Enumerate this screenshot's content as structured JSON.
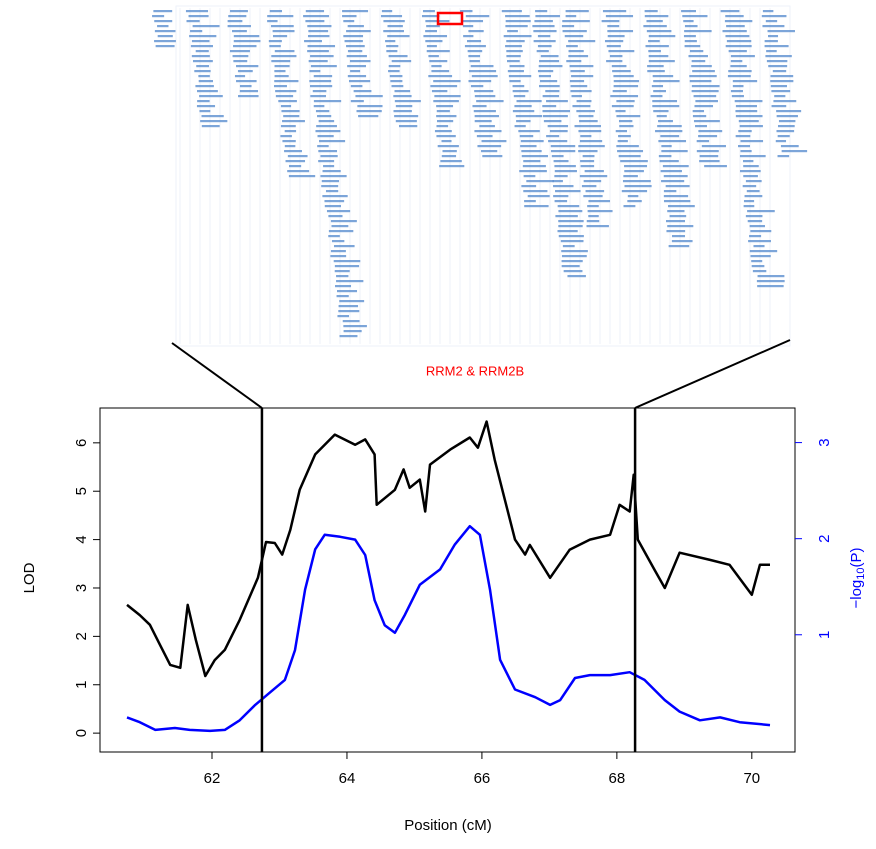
{
  "chart_data": {
    "type": "line",
    "annotation": "RRM2 & RRM2B",
    "xlabel": "Position (cM)",
    "ylabel": "LOD",
    "y2label": {
      "prefix": "−log",
      "sub": "10",
      "suffix": "(P)"
    },
    "xlim": [
      60.34,
      70.64
    ],
    "xticks": [
      62,
      64,
      66,
      68,
      70
    ],
    "ylim": [
      -0.39,
      6.72
    ],
    "yticks": [
      0,
      1,
      2,
      3,
      4,
      5,
      6
    ],
    "y2lim": [
      -0.22,
      3.36
    ],
    "y2ticks": [
      1,
      2,
      3
    ],
    "vlines": [
      62.74,
      68.27
    ],
    "series": [
      {
        "color": "#000000",
        "x": [
          60.74,
          60.93,
          61.08,
          61.23,
          61.38,
          61.53,
          61.64,
          61.76,
          61.9,
          62.04,
          62.19,
          62.41,
          62.68,
          62.8,
          62.93,
          63.04,
          63.16,
          63.3,
          63.53,
          63.82,
          64.12,
          64.27,
          64.41,
          64.44,
          64.71,
          64.84,
          64.93,
          65.08,
          65.16,
          65.23,
          65.53,
          65.82,
          65.94,
          66.07,
          66.19,
          66.34,
          66.49,
          66.64,
          66.71,
          67.01,
          67.3,
          67.6,
          67.9,
          68.04,
          68.19,
          68.25,
          68.31,
          68.56,
          68.71,
          68.93,
          69.38,
          69.67,
          70.0,
          70.12,
          70.27
        ],
        "values": [
          2.65,
          2.44,
          2.24,
          1.82,
          1.41,
          1.35,
          2.65,
          1.93,
          1.18,
          1.51,
          1.72,
          2.34,
          3.21,
          3.95,
          3.93,
          3.69,
          4.2,
          5.03,
          5.76,
          6.17,
          5.96,
          6.07,
          5.76,
          4.72,
          5.03,
          5.45,
          5.07,
          5.24,
          4.58,
          5.55,
          5.86,
          6.11,
          5.9,
          6.44,
          5.65,
          4.82,
          4.0,
          3.69,
          3.89,
          3.21,
          3.79,
          4.0,
          4.1,
          4.72,
          4.58,
          5.34,
          4.0,
          3.37,
          3.0,
          3.73,
          3.58,
          3.48,
          2.86,
          3.48,
          3.48
        ]
      },
      {
        "color": "#0000ff",
        "axis": "y2",
        "x": [
          60.74,
          60.93,
          61.16,
          61.45,
          61.67,
          61.97,
          62.19,
          62.41,
          62.64,
          62.86,
          63.08,
          63.23,
          63.38,
          63.53,
          63.67,
          63.9,
          64.12,
          64.27,
          64.41,
          64.56,
          64.71,
          64.86,
          65.08,
          65.38,
          65.6,
          65.82,
          65.97,
          66.12,
          66.27,
          66.49,
          66.79,
          67.01,
          67.16,
          67.38,
          67.6,
          67.9,
          68.19,
          68.41,
          68.71,
          68.93,
          69.23,
          69.53,
          69.82,
          70.27
        ],
        "values": [
          0.14,
          0.09,
          0.01,
          0.03,
          0.01,
          0.0,
          0.01,
          0.11,
          0.27,
          0.4,
          0.53,
          0.84,
          1.47,
          1.89,
          2.04,
          2.02,
          1.99,
          1.83,
          1.36,
          1.1,
          1.02,
          1.21,
          1.52,
          1.68,
          1.94,
          2.13,
          2.04,
          1.47,
          0.74,
          0.43,
          0.35,
          0.27,
          0.32,
          0.55,
          0.58,
          0.58,
          0.61,
          0.53,
          0.32,
          0.2,
          0.11,
          0.14,
          0.09,
          0.06
        ]
      }
    ]
  }
}
